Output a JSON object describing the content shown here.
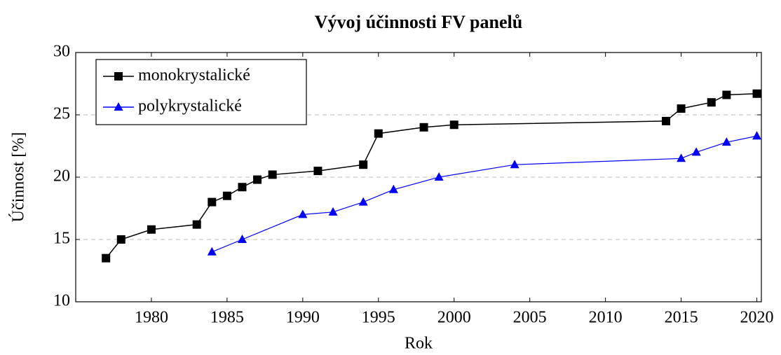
{
  "chart_data": {
    "type": "line",
    "title": "Vývoj účinnosti FV panelů",
    "xlabel": "Rok",
    "ylabel": "Účinnost [%]",
    "xlim": [
      1975,
      2020.3
    ],
    "xticks": [
      1980,
      1985,
      1990,
      1995,
      2000,
      2005,
      2010,
      2015,
      2020
    ],
    "ylim": [
      10,
      30
    ],
    "yticks": [
      10,
      15,
      20,
      25,
      30
    ],
    "grid": true,
    "legend": "top-left",
    "series": [
      {
        "name": "monokrystalické",
        "color": "#000000",
        "marker": "square",
        "x": [
          1977,
          1978,
          1980,
          1983,
          1984,
          1985,
          1986,
          1987,
          1988,
          1991,
          1994,
          1995,
          1998,
          2000,
          2014,
          2015,
          2017,
          2018,
          2020
        ],
        "values": [
          13.5,
          15,
          15.8,
          16.2,
          18,
          18.5,
          19.2,
          19.8,
          20.2,
          20.5,
          21,
          23.5,
          24,
          24.2,
          24.5,
          25.5,
          26,
          26.6,
          26.7
        ]
      },
      {
        "name": "polykrystalické",
        "color": "#0000ff",
        "marker": "triangle",
        "x": [
          1984,
          1986,
          1990,
          1992,
          1994,
          1996,
          1999,
          2004,
          2015,
          2016,
          2018,
          2020
        ],
        "values": [
          14,
          15,
          17,
          17.2,
          18,
          19,
          20,
          21,
          21.5,
          22,
          22.8,
          23.3
        ]
      }
    ]
  }
}
